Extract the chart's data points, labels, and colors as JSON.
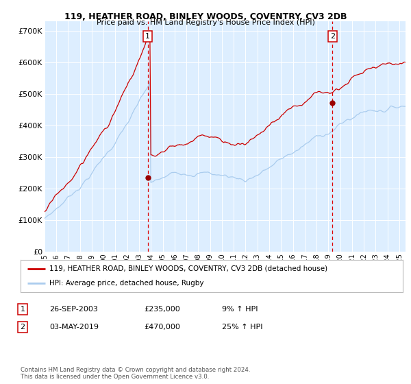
{
  "title": "119, HEATHER ROAD, BINLEY WOODS, COVENTRY, CV3 2DB",
  "subtitle": "Price paid vs. HM Land Registry's House Price Index (HPI)",
  "ylabel_ticks": [
    "£0",
    "£100K",
    "£200K",
    "£300K",
    "£400K",
    "£500K",
    "£600K",
    "£700K"
  ],
  "ytick_vals": [
    0,
    100000,
    200000,
    300000,
    400000,
    500000,
    600000,
    700000
  ],
  "ylim": [
    0,
    730000
  ],
  "xlim_start": 1995.0,
  "xlim_end": 2025.5,
  "bg_color": "#ddeeff",
  "grid_color": "#ffffff",
  "red_line_color": "#cc0000",
  "blue_line_color": "#aaccee",
  "dashed_line_color": "#dd0000",
  "purchase1_x": 2003.74,
  "purchase1_y": 235000,
  "purchase2_x": 2019.34,
  "purchase2_y": 470000,
  "legend_red_label": "119, HEATHER ROAD, BINLEY WOODS, COVENTRY, CV3 2DB (detached house)",
  "legend_blue_label": "HPI: Average price, detached house, Rugby",
  "table_row1": [
    "1",
    "26-SEP-2003",
    "£235,000",
    "9% ↑ HPI"
  ],
  "table_row2": [
    "2",
    "03-MAY-2019",
    "£470,000",
    "25% ↑ HPI"
  ],
  "footnote": "Contains HM Land Registry data © Crown copyright and database right 2024.\nThis data is licensed under the Open Government Licence v3.0.",
  "xtick_years": [
    1995,
    1996,
    1997,
    1998,
    1999,
    2000,
    2001,
    2002,
    2003,
    2004,
    2005,
    2006,
    2007,
    2008,
    2009,
    2010,
    2011,
    2012,
    2013,
    2014,
    2015,
    2016,
    2017,
    2018,
    2019,
    2020,
    2021,
    2022,
    2023,
    2024,
    2025
  ]
}
